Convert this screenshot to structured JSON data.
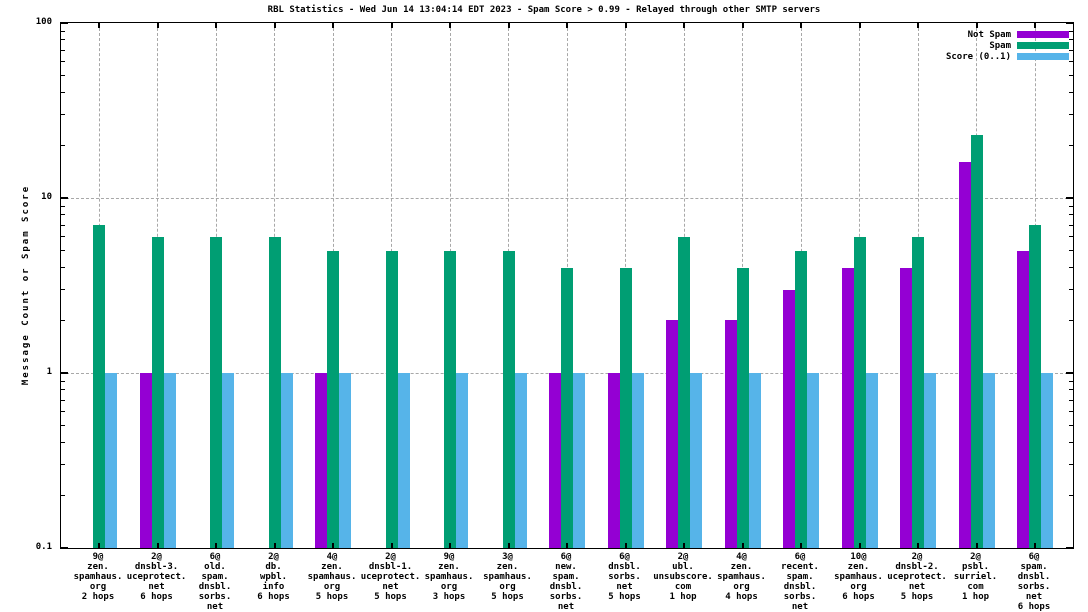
{
  "chart_data": {
    "type": "bar",
    "title": "RBL Statistics - Wed Jun 14 13:04:14 EDT 2023 - Spam Score > 0.99 - Relayed through other SMTP servers",
    "ylabel": "Message Count or Spam Score",
    "xlabel": "",
    "yscale": "log",
    "ylim": [
      0.1,
      100
    ],
    "ytick_labels": [
      "100",
      "10",
      "1",
      "0.1"
    ],
    "ytick_values": [
      100,
      10,
      1,
      0.1
    ],
    "grid": true,
    "legend_position": "top-right",
    "colors": {
      "not_spam": "#9400d3",
      "spam": "#009e73",
      "score": "#56b4e9",
      "grid": "#a8a8a8",
      "axis": "#000000"
    },
    "series": [
      {
        "name": "Not Spam",
        "color": "#9400d3",
        "values": [
          0,
          1,
          0,
          0,
          1,
          0,
          0,
          0,
          1,
          1,
          2,
          2,
          3,
          4,
          4,
          16,
          5
        ]
      },
      {
        "name": "Spam",
        "color": "#009e73",
        "values": [
          7,
          6,
          6,
          6,
          5,
          5,
          5,
          5,
          4,
          4,
          6,
          4,
          5,
          6,
          6,
          23,
          7
        ]
      },
      {
        "name": "Score (0..1)",
        "color": "#56b4e9",
        "values": [
          1,
          1,
          1,
          1,
          1,
          1,
          1,
          1,
          1,
          1,
          1,
          1,
          1,
          1,
          1,
          1,
          1
        ]
      }
    ],
    "categories": [
      [
        "9@",
        "zen.",
        "spamhaus.",
        "org",
        "2 hops"
      ],
      [
        "2@",
        "dnsbl-3.",
        "uceprotect.",
        "net",
        "6 hops"
      ],
      [
        "6@",
        "old.",
        "spam.",
        "dnsbl.",
        "sorbs.",
        "net",
        "6 hops"
      ],
      [
        "2@",
        "db.",
        "wpbl.",
        "info",
        "6 hops"
      ],
      [
        "4@",
        "zen.",
        "spamhaus.",
        "org",
        "5 hops"
      ],
      [
        "2@",
        "dnsbl-1.",
        "uceprotect.",
        "net",
        "5 hops"
      ],
      [
        "9@",
        "zen.",
        "spamhaus.",
        "org",
        "3 hops"
      ],
      [
        "3@",
        "zen.",
        "spamhaus.",
        "org",
        "5 hops"
      ],
      [
        "6@",
        "new.",
        "spam.",
        "dnsbl.",
        "sorbs.",
        "net",
        "5 hops"
      ],
      [
        "6@",
        "dnsbl.",
        "sorbs.",
        "net",
        "5 hops"
      ],
      [
        "2@",
        "ubl.",
        "unsubscore.",
        "com",
        "1 hop"
      ],
      [
        "4@",
        "zen.",
        "spamhaus.",
        "org",
        "4 hops"
      ],
      [
        "6@",
        "recent.",
        "spam.",
        "dnsbl.",
        "sorbs.",
        "net",
        "5 hops"
      ],
      [
        "10@",
        "zen.",
        "spamhaus.",
        "org",
        "6 hops"
      ],
      [
        "2@",
        "dnsbl-2.",
        "uceprotect.",
        "net",
        "5 hops"
      ],
      [
        "2@",
        "psbl.",
        "surriel.",
        "com",
        "1 hop"
      ],
      [
        "6@",
        "spam.",
        "dnsbl.",
        "sorbs.",
        "net",
        "6 hops"
      ]
    ]
  }
}
